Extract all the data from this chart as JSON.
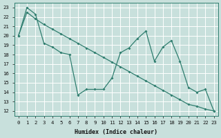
{
  "xlabel": "Humidex (Indice chaleur)",
  "xlim": [
    -0.5,
    23.5
  ],
  "ylim": [
    11.5,
    23.5
  ],
  "yticks": [
    12,
    13,
    14,
    15,
    16,
    17,
    18,
    19,
    20,
    21,
    22,
    23
  ],
  "xticks": [
    0,
    1,
    2,
    3,
    4,
    5,
    6,
    7,
    8,
    9,
    10,
    11,
    12,
    13,
    14,
    15,
    16,
    17,
    18,
    19,
    20,
    21,
    22,
    23
  ],
  "background_color": "#c8e0dc",
  "grid_color": "#ffffff",
  "line_color": "#2e7d6e",
  "line1_x": [
    0,
    1,
    2,
    3,
    4,
    5,
    6,
    7,
    8,
    9,
    10,
    11,
    12,
    13,
    14,
    15,
    16,
    17,
    18,
    19,
    20,
    21,
    22,
    23
  ],
  "line1_y": [
    20,
    23,
    22.3,
    19.2,
    18.8,
    18.2,
    18.0,
    13.7,
    14.3,
    14.3,
    14.3,
    15.5,
    18.2,
    18.7,
    19.7,
    20.5,
    17.3,
    18.8,
    19.5,
    17.3,
    14.5,
    14.0,
    14.3,
    12.0
  ],
  "line2_x": [
    0,
    1,
    2,
    3,
    4,
    5,
    6,
    7,
    8,
    9,
    10,
    11,
    12,
    13,
    14,
    15,
    16,
    17,
    18,
    19,
    20,
    21,
    22,
    23
  ],
  "line2_y": [
    20.0,
    22.5,
    21.8,
    21.2,
    20.7,
    20.2,
    19.7,
    19.2,
    18.7,
    18.2,
    17.7,
    17.2,
    16.7,
    16.2,
    15.7,
    15.2,
    14.7,
    14.2,
    13.7,
    13.2,
    12.7,
    12.5,
    12.2,
    12.0
  ]
}
